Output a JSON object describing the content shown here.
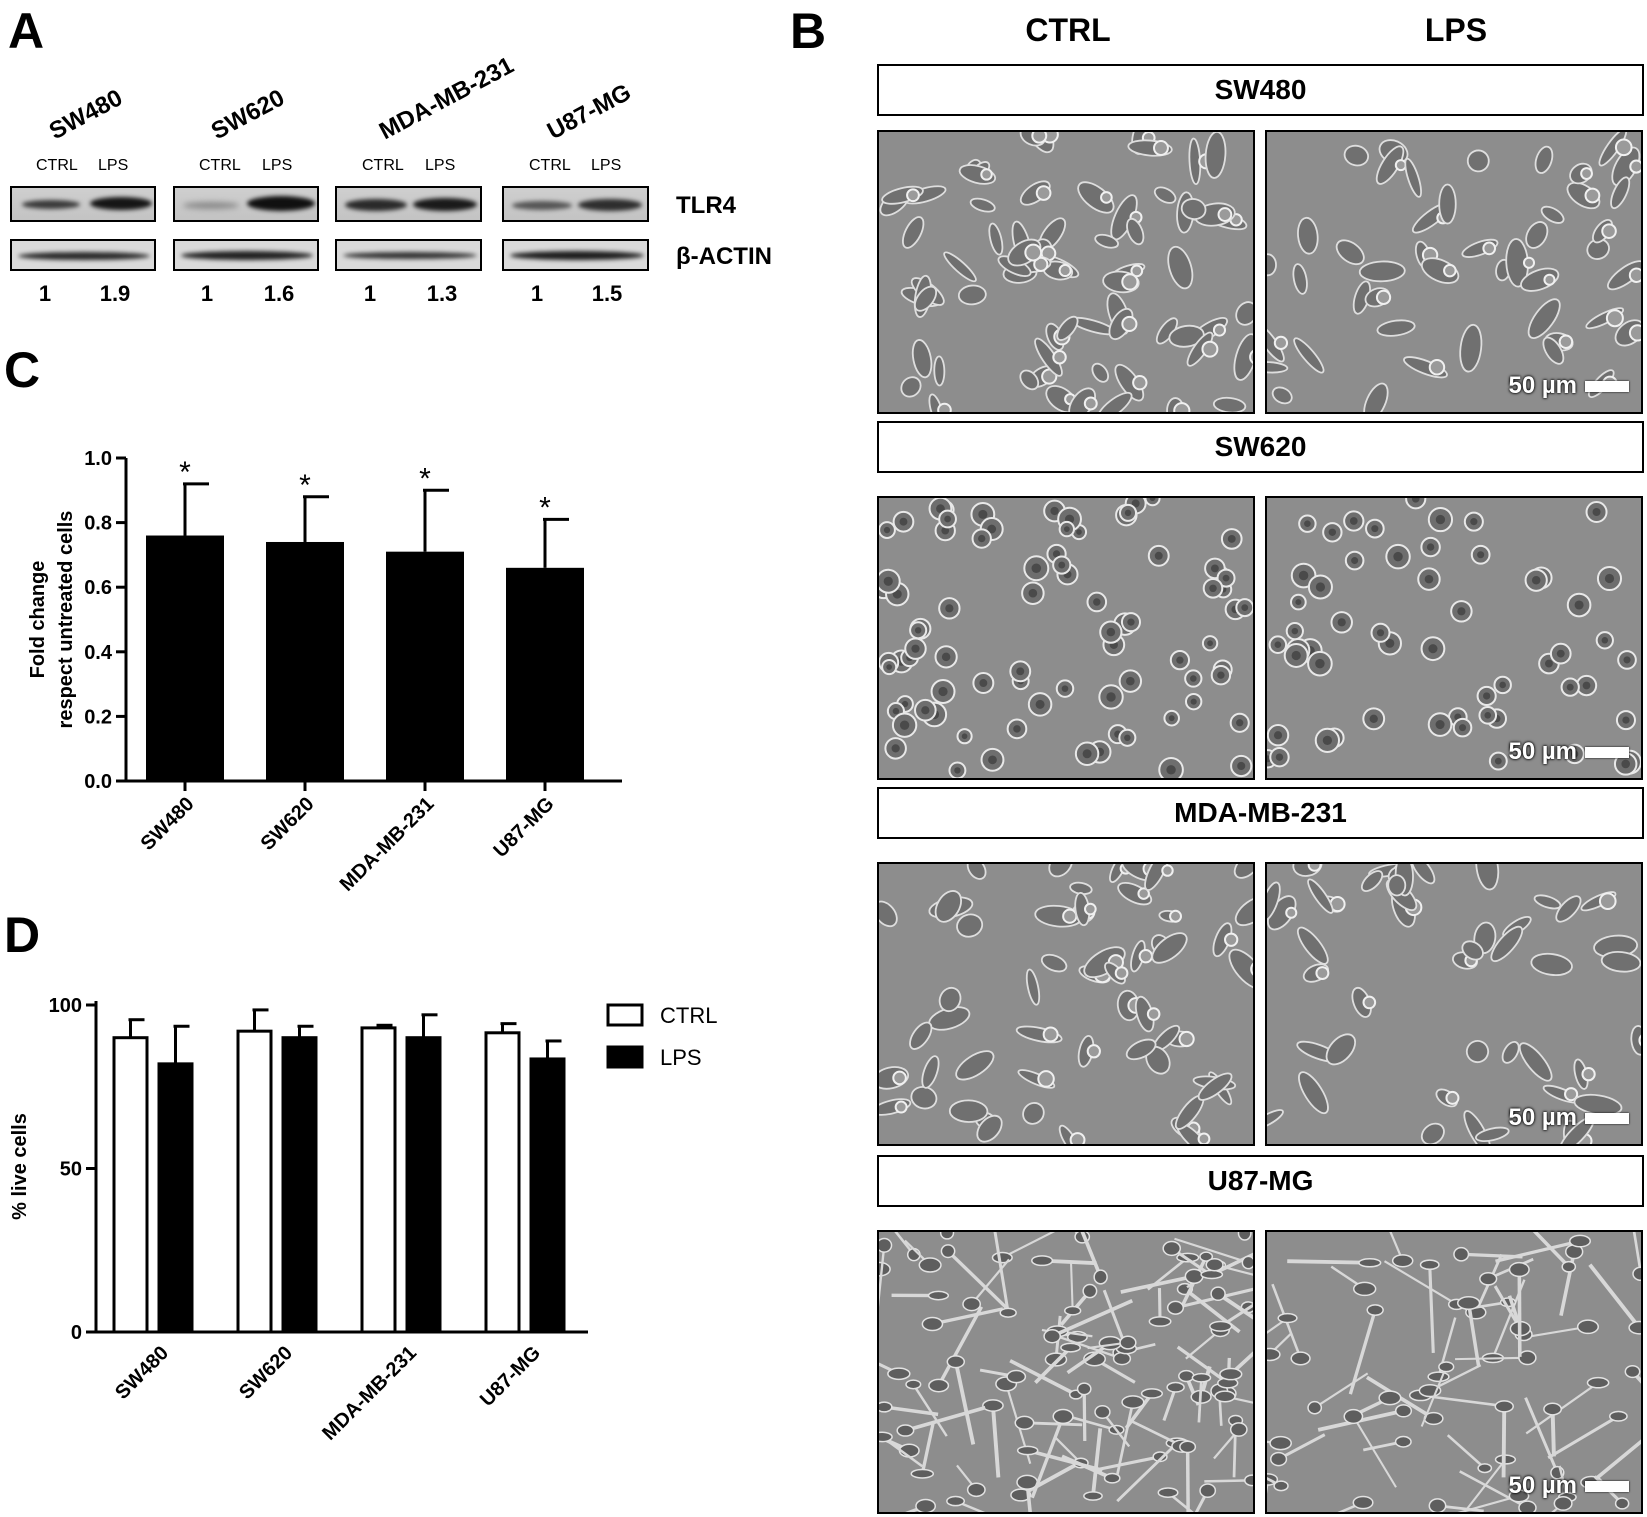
{
  "panels": {
    "a": "A",
    "b": "B",
    "c": "C",
    "d": "D"
  },
  "western_blot": {
    "cell_lines": [
      {
        "name": "SW480",
        "lanes": [
          "CTRL",
          "LPS"
        ],
        "ratios": [
          "1",
          "1.9"
        ]
      },
      {
        "name": "SW620",
        "lanes": [
          "CTRL",
          "LPS"
        ],
        "ratios": [
          "1",
          "1.6"
        ]
      },
      {
        "name": "MDA-MB-231",
        "lanes": [
          "CTRL",
          "LPS"
        ],
        "ratios": [
          "1",
          "1.3"
        ]
      },
      {
        "name": "U87-MG",
        "lanes": [
          "CTRL",
          "LPS"
        ],
        "ratios": [
          "1",
          "1.5"
        ]
      }
    ],
    "markers": {
      "top": "TLR4",
      "bottom": "β-ACTIN"
    }
  },
  "micrographs": {
    "columns": [
      "CTRL",
      "LPS"
    ],
    "rows": [
      "SW480",
      "SW620",
      "MDA-MB-231",
      "U87-MG"
    ],
    "scale_bar": "50 µm"
  },
  "chart_data": [
    {
      "type": "bar",
      "panel": "C",
      "categories": [
        "SW480",
        "SW620",
        "MDA-MB-231",
        "U87-MG"
      ],
      "series": [
        {
          "values": [
            0.76,
            0.74,
            0.71,
            0.66
          ],
          "errors": [
            0.16,
            0.14,
            0.19,
            0.15
          ]
        }
      ],
      "significance": [
        "*",
        "*",
        "*",
        "*"
      ],
      "ylabel": "Fold change\nrespect untreated cells",
      "ylim": [
        0,
        1.0
      ],
      "yticks": [
        "0.0",
        "0.2",
        "0.4",
        "0.6",
        "0.8",
        "1.0"
      ],
      "bar_color": "#000000"
    },
    {
      "type": "bar",
      "panel": "D",
      "categories": [
        "SW480",
        "SW620",
        "MDA-MB-231",
        "U87-MG"
      ],
      "series": [
        {
          "name": "CTRL",
          "values": [
            90,
            92,
            93,
            91.5
          ],
          "errors": [
            5.5,
            6.5,
            0.8,
            2.8
          ],
          "fill": "#ffffff"
        },
        {
          "name": "LPS",
          "values": [
            82,
            90,
            90,
            83.5
          ],
          "errors": [
            11.5,
            3.5,
            7,
            5.5
          ],
          "fill": "#000000"
        }
      ],
      "ylabel": "% live cells",
      "ylim": [
        0,
        100
      ],
      "yticks": [
        "0",
        "50",
        "100"
      ],
      "legend_position": "top-right"
    }
  ]
}
